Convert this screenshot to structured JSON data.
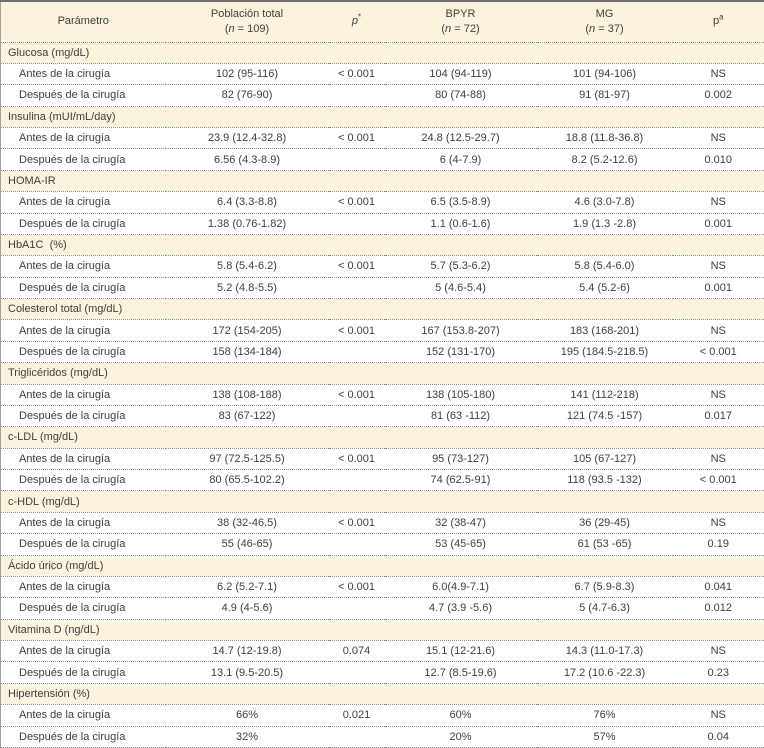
{
  "colors": {
    "band": "#fcf3de",
    "text": "#3e3e3e",
    "grid_dotted": "#8a8a8a",
    "top_border": "#6e6e6e",
    "side_border": "#a3a3a3"
  },
  "table": {
    "columns": [
      {
        "label": "Parámetro"
      },
      {
        "label": "Población total",
        "sub": "(n = 109)"
      },
      {
        "label": "p",
        "sup": "*",
        "italic": true
      },
      {
        "label": "BPYR",
        "sub": "(n = 72)"
      },
      {
        "label": "MG",
        "sub": "(n = 37)"
      },
      {
        "label": "p",
        "sup": "a"
      }
    ],
    "sections": [
      {
        "title": "Glucosa (mg/dL)",
        "rows": [
          {
            "label": "Antes de la cirugía",
            "values": [
              "102 (95-116)",
              "< 0.001",
              "104 (94-119)",
              "101 (94-106)",
              "NS"
            ]
          },
          {
            "label": "Después de la cirugía",
            "values": [
              "82 (76-90)",
              "",
              "80 (74-88)",
              "91 (81-97)",
              "0.002"
            ]
          }
        ]
      },
      {
        "title": "Insulina (mUI/mL/day)",
        "rows": [
          {
            "label": "Antes de la cirugía",
            "values": [
              "23.9 (12.4-32.8)",
              "< 0.001",
              "24.8 (12.5-29.7)",
              "18.8 (11.8-36.8)",
              "NS"
            ]
          },
          {
            "label": "Después de la cirugía",
            "values": [
              "6.56 (4.3-8.9)",
              "",
              "6 (4-7.9)",
              "8.2 (5.2-12.6)",
              "0.010"
            ]
          }
        ]
      },
      {
        "title": "HOMA-IR",
        "rows": [
          {
            "label": "Antes de la cirugía",
            "values": [
              "6.4 (3.3-8.8)",
              "< 0.001",
              "6.5 (3.5-8.9)",
              "4.6 (3.0-7.8)",
              "NS"
            ]
          },
          {
            "label": "Después de la cirugía",
            "values": [
              "1.38 (0.76-1.82)",
              "",
              "1.1 (0.6-1.6)",
              "1.9 (1.3 -2.8)",
              "0.001"
            ]
          }
        ]
      },
      {
        "title": "HbA1C  (%)",
        "rows": [
          {
            "label": "Antes de la cirugía",
            "values": [
              "5.8 (5.4-6.2)",
              "< 0.001",
              "5.7 (5.3-6.2)",
              "5.8 (5.4-6.0)",
              "NS"
            ]
          },
          {
            "label": "Después de la cirugía",
            "values": [
              "5.2 (4.8-5.5)",
              "",
              "5 (4.6-5.4)",
              "5.4 (5.2-6)",
              "0.001"
            ]
          }
        ]
      },
      {
        "title": "Colesterol total (mg/dL)",
        "rows": [
          {
            "label": "Antes de la cirugía",
            "values": [
              "172 (154-205)",
              "< 0.001",
              "167 (153.8-207)",
              "183 (168-201)",
              "NS"
            ]
          },
          {
            "label": "Después de la cirugía",
            "values": [
              "158 (134-184)",
              "",
              "152 (131-170)",
              "195 (184.5-218.5)",
              "< 0.001"
            ]
          }
        ]
      },
      {
        "title": "Triglicéridos (mg/dL)",
        "rows": [
          {
            "label": "Antes de la cirugía",
            "values": [
              "138 (108-188)",
              "< 0.001",
              "138 (105-180)",
              "141 (112-218)",
              "NS"
            ]
          },
          {
            "label": "Después de la cirugía",
            "values": [
              "83 (67-122)",
              "",
              "81 (63 -112)",
              "121 (74.5 -157)",
              "0.017"
            ]
          }
        ]
      },
      {
        "title": "c-LDL (mg/dL)",
        "rows": [
          {
            "label": "Antes de la cirugía",
            "values": [
              "97 (72.5-125.5)",
              "< 0.001",
              "95 (73-127)",
              "105 (67-127)",
              "NS"
            ]
          },
          {
            "label": "Después de la cirugía",
            "values": [
              "80 (65.5-102.2)",
              "",
              "74 (62.5-91)",
              "118 (93.5 -132)",
              "< 0.001"
            ]
          }
        ]
      },
      {
        "title": "c-HDL (mg/dL)",
        "rows": [
          {
            "label": "Antes de la cirugía",
            "values": [
              "38 (32-46.5)",
              "< 0.001",
              "32 (38-47)",
              "36 (29-45)",
              "NS"
            ]
          },
          {
            "label": "Después de la cirugía",
            "values": [
              "55 (46-65)",
              "",
              "53 (45-65)",
              "61 (53 -65)",
              "0.19"
            ]
          }
        ]
      },
      {
        "title": "Ácido úrico (mg/dL)",
        "rows": [
          {
            "label": "Antes de la cirugía",
            "values": [
              "6.2 (5.2-7.1)",
              "< 0.001",
              "6.0(4.9-7.1)",
              "6.7 (5.9-8.3)",
              "0.041"
            ]
          },
          {
            "label": "Después de la cirugía",
            "values": [
              "4.9 (4-5.6)",
              "",
              "4.7 (3.9 -5.6)",
              "5 (4.7-6.3)",
              "0.012"
            ]
          }
        ]
      },
      {
        "title": "Vitamina D (ng/dL)",
        "rows": [
          {
            "label": "Antes de la cirugía",
            "values": [
              "14.7 (12-19.8)",
              "0.074",
              "15.1 (12-21.6)",
              "14.3 (11.0-17.3)",
              "NS"
            ]
          },
          {
            "label": "Después de la cirugía",
            "values": [
              "13.1 (9.5-20.5)",
              "",
              "12.7 (8.5-19.6)",
              "17.2 (10.6 -22.3)",
              "0.23"
            ]
          }
        ]
      },
      {
        "title": "Hipertensión (%)",
        "rows": [
          {
            "label": "Antes de la cirugía",
            "values": [
              "66%",
              "0.021",
              "60%",
              "76%",
              "NS"
            ]
          },
          {
            "label": "Después de la cirugía",
            "values": [
              "32%",
              "",
              "20%",
              "57%",
              "0.04"
            ]
          }
        ]
      }
    ]
  }
}
